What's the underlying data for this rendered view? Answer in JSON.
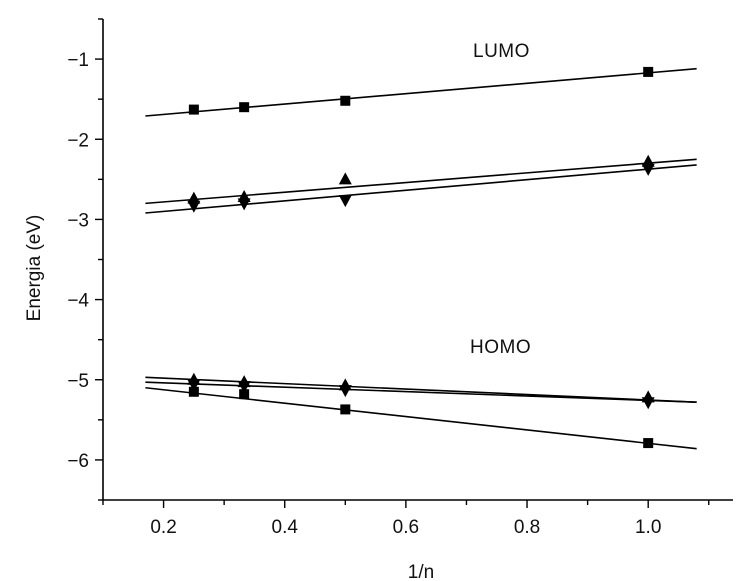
{
  "chart_data": {
    "type": "scatter",
    "title": "",
    "xlabel": "1/n",
    "ylabel": "Energia (eV)",
    "xlim": [
      0.1,
      1.14
    ],
    "ylim": [
      -6.5,
      -0.5
    ],
    "xticks": [
      0.2,
      0.4,
      0.6,
      0.8,
      1.0
    ],
    "xtick_labels": [
      "0.2",
      "0.4",
      "0.6",
      "0.8",
      "1.0"
    ],
    "yticks": [
      -1,
      -2,
      -3,
      -4,
      -5,
      -6
    ],
    "ytick_labels": [
      "−1",
      "−2",
      "−3",
      "−4",
      "−5",
      "−6"
    ],
    "grid": false,
    "annotations": [
      {
        "text": "LUMO",
        "x": 0.84,
        "y": -1.1
      },
      {
        "text": "HOMO",
        "x": 0.81,
        "y": -4.55
      }
    ],
    "series": [
      {
        "marker": "square",
        "group": "LUMO",
        "x": [
          0.25,
          0.333,
          0.5,
          1.0
        ],
        "y": [
          -1.63,
          -1.6,
          -1.52,
          -1.16
        ],
        "fit": {
          "x": [
            0.17,
            1.08
          ],
          "y": [
            -1.71,
            -1.12
          ]
        }
      },
      {
        "marker": "triangle-up",
        "group": "LUMO",
        "x": [
          0.25,
          0.333,
          0.5,
          1.0
        ],
        "y": [
          -2.74,
          -2.72,
          -2.5,
          -2.28
        ],
        "fit": {
          "x": [
            0.17,
            1.08
          ],
          "y": [
            -2.8,
            -2.25
          ]
        }
      },
      {
        "marker": "triangle-down",
        "group": "LUMO",
        "x": [
          0.25,
          0.333,
          0.5,
          1.0
        ],
        "y": [
          -2.83,
          -2.8,
          -2.76,
          -2.37
        ],
        "fit": {
          "x": [
            0.17,
            1.08
          ],
          "y": [
            -2.92,
            -2.32
          ]
        }
      },
      {
        "marker": "square",
        "group": "HOMO",
        "x": [
          0.25,
          0.333,
          0.5,
          1.0
        ],
        "y": [
          -5.15,
          -5.18,
          -5.37,
          -5.79
        ],
        "fit": {
          "x": [
            0.17,
            1.08
          ],
          "y": [
            -5.1,
            -5.86
          ]
        }
      },
      {
        "marker": "triangle-up",
        "group": "HOMO",
        "x": [
          0.25,
          0.333,
          0.5,
          1.0
        ],
        "y": [
          -5.0,
          -5.03,
          -5.07,
          -5.22
        ],
        "fit": {
          "x": [
            0.17,
            1.08
          ],
          "y": [
            -4.97,
            -5.28
          ]
        }
      },
      {
        "marker": "triangle-down",
        "group": "HOMO",
        "x": [
          0.25,
          0.333,
          0.5,
          1.0
        ],
        "y": [
          -5.06,
          -5.08,
          -5.13,
          -5.28
        ],
        "fit": {
          "x": [
            0.17,
            1.08
          ],
          "y": [
            -5.03,
            -5.28
          ]
        }
      }
    ]
  }
}
